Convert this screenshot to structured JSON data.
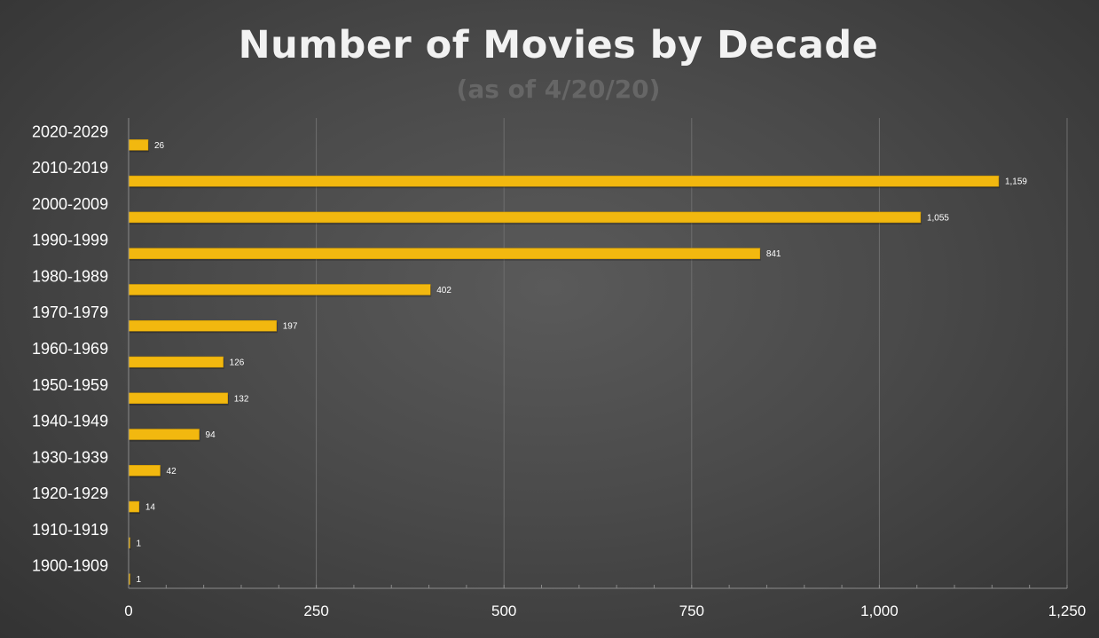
{
  "chart_data": {
    "type": "bar",
    "orientation": "horizontal",
    "title": "Number of Movies by Decade",
    "subtitle": "(as of 4/20/20)",
    "categories": [
      "2020-2029",
      "2010-2019",
      "2000-2009",
      "1990-1999",
      "1980-1989",
      "1970-1979",
      "1960-1969",
      "1950-1959",
      "1940-1949",
      "1930-1939",
      "1920-1929",
      "1910-1919",
      "1900-1909"
    ],
    "values": [
      26,
      1159,
      1055,
      841,
      402,
      197,
      126,
      132,
      94,
      42,
      14,
      1,
      1
    ],
    "data_labels": [
      "26",
      "1,159",
      "1,055",
      "841",
      "402",
      "197",
      "126",
      "132",
      "94",
      "42",
      "14",
      "1",
      "1"
    ],
    "xlim": [
      0,
      1250
    ],
    "x_ticks": [
      0,
      250,
      500,
      750,
      1000,
      1250
    ],
    "x_tick_labels": [
      "0",
      "250",
      "500",
      "750",
      "1,000",
      "1,250"
    ],
    "xlabel": "",
    "ylabel": "",
    "grid": true,
    "legend": "none",
    "colors": {
      "bar": "#f2b80f",
      "bar_edge": "#c99400",
      "grid": "#6e6e6e",
      "axis": "#8a8a8a",
      "text": "#ffffff",
      "title": "#f2f2f2",
      "subtitle": "#666666"
    }
  }
}
